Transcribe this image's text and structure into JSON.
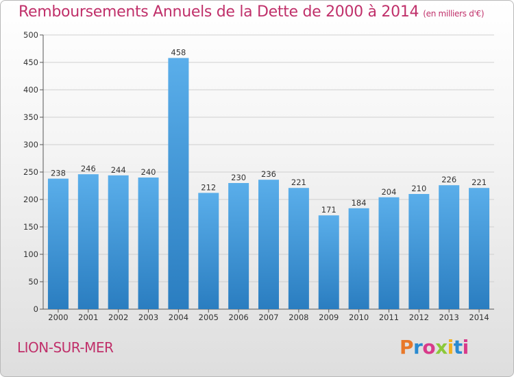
{
  "title": "Remboursements Annuels de la Dette de 2000 à 2014",
  "subtitle": "(en milliers d'€)",
  "city": "LION-SUR-MER",
  "logo": {
    "text": "Proxiti",
    "colors": [
      "#e8782a",
      "#2a8ad0",
      "#d83a8a",
      "#8cc83a",
      "#f0b020",
      "#2a8ad0",
      "#d83a8a"
    ]
  },
  "colors": {
    "bar_top": "#5aaeea",
    "bar_bottom": "#2a7dc0",
    "title": "#c0306a",
    "grid": "#cfcfcf"
  },
  "chart_data": {
    "type": "bar",
    "categories": [
      "2000",
      "2001",
      "2002",
      "2003",
      "2004",
      "2005",
      "2006",
      "2007",
      "2008",
      "2009",
      "2010",
      "2011",
      "2012",
      "2013",
      "2014"
    ],
    "values": [
      238,
      246,
      244,
      240,
      458,
      212,
      230,
      236,
      221,
      171,
      184,
      204,
      210,
      226,
      221
    ],
    "yticks": [
      0,
      50,
      100,
      150,
      200,
      250,
      300,
      350,
      400,
      450,
      500
    ],
    "ylim": [
      0,
      500
    ],
    "grid": true,
    "title": "Remboursements Annuels de la Dette de 2000 à 2014",
    "subtitle": "(en milliers d'€)",
    "xlabel": "",
    "ylabel": ""
  }
}
